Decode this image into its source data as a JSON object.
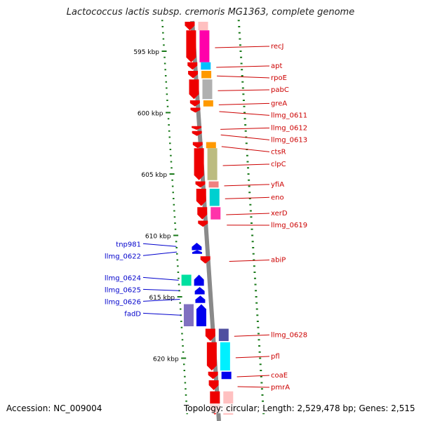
{
  "title": "Lactococcus lactis subsp. cremoris MG1363, complete genome",
  "accession": "Accession: NC_009004",
  "topology": "Topology: circular; Length: 2,529,478 bp; Genes: 2,515",
  "ruler": {
    "start_kbp": 592.6,
    "end_kbp": 624.6,
    "label_every_kbp": 5,
    "labels": [
      "595 kbp",
      "600 kbp",
      "605 kbp",
      "610 kbp",
      "615 kbp",
      "620 kbp"
    ],
    "label_values_kbp": [
      595,
      600,
      605,
      610,
      615,
      620
    ]
  },
  "colors": {
    "backbone": "#8a8a8a",
    "tick": "#1a7a1a",
    "forward_label": "#cc0000",
    "reverse_label": "#0000cc",
    "reverse_gene": "#0000ee"
  },
  "forward_genes": [
    {
      "name": "",
      "start": 592.6,
      "end": 593.3,
      "cog": "#ffc0c0"
    },
    {
      "name": "recJ",
      "start": 593.3,
      "end": 595.9,
      "cog": "#ff00aa"
    },
    {
      "name": "apt",
      "start": 595.9,
      "end": 596.5,
      "cog": "#00c0ff"
    },
    {
      "name": "rpoE",
      "start": 596.6,
      "end": 597.2,
      "cog": "#ff9900"
    },
    {
      "name": "pabC",
      "start": 597.3,
      "end": 598.9,
      "cog": "#b0b0b0"
    },
    {
      "name": "greA",
      "start": 599.0,
      "end": 599.5,
      "cog": "#ff9900"
    },
    {
      "name": "llmg_0611",
      "start": 599.6,
      "end": 600.0,
      "cog": ""
    },
    {
      "name": "llmg_0612",
      "start": 601.1,
      "end": 601.4,
      "cog": ""
    },
    {
      "name": "llmg_0613",
      "start": 601.5,
      "end": 601.9,
      "cog": ""
    },
    {
      "name": "ctsR",
      "start": 602.4,
      "end": 602.9,
      "cog": "#ff9900"
    },
    {
      "name": "clpC",
      "start": 602.9,
      "end": 605.5,
      "cog": "#bcbc80"
    },
    {
      "name": "yfiA",
      "start": 605.6,
      "end": 606.1,
      "cog": "#f08080"
    },
    {
      "name": "eno",
      "start": 606.2,
      "end": 607.6,
      "cog": "#00d0d0"
    },
    {
      "name": "xerD",
      "start": 607.7,
      "end": 608.7,
      "cog": "#ff33aa"
    },
    {
      "name": "llmg_0619",
      "start": 608.8,
      "end": 609.3,
      "cog": ""
    },
    {
      "name": "abiP",
      "start": 611.7,
      "end": 612.3,
      "cog": ""
    },
    {
      "name": "llmg_0628",
      "start": 617.6,
      "end": 618.6,
      "cog": "#5050a0"
    },
    {
      "name": "pfl",
      "start": 618.7,
      "end": 621.0,
      "cog": "#00f0ff"
    },
    {
      "name": "coaE",
      "start": 621.1,
      "end": 621.7,
      "cog": "#0000ee"
    },
    {
      "name": "pmrA",
      "start": 621.8,
      "end": 622.6,
      "cog": ""
    },
    {
      "name": "",
      "start": 622.7,
      "end": 624.6,
      "cog": "#ffc0c0"
    }
  ],
  "reverse_genes": [
    {
      "name": "tnp981",
      "start": 610.6,
      "end": 611.2,
      "cog": ""
    },
    {
      "name": "llmg_0622",
      "start": 611.2,
      "end": 611.5,
      "cog": ""
    },
    {
      "name": "llmg_0624",
      "start": 613.2,
      "end": 614.1,
      "cog": "#00e0a0"
    },
    {
      "name": "llmg_0625",
      "start": 614.2,
      "end": 614.8,
      "cog": ""
    },
    {
      "name": "llmg_0626",
      "start": 614.9,
      "end": 615.5,
      "cog": ""
    },
    {
      "name": "fadD",
      "start": 615.6,
      "end": 617.4,
      "cog": "#8070c0"
    }
  ]
}
